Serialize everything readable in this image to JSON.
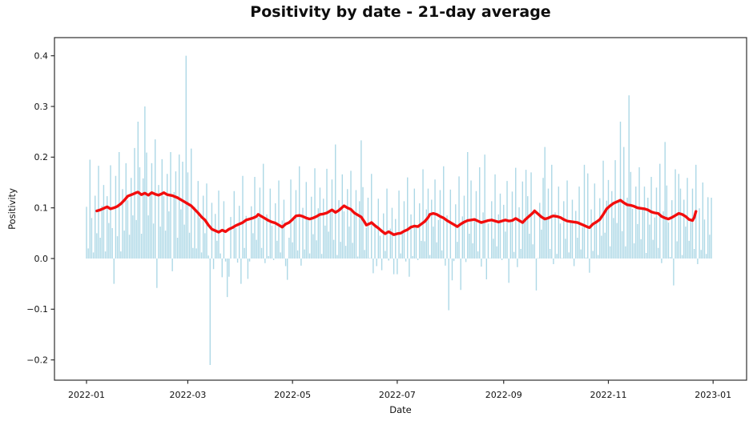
{
  "figure": {
    "title": "Positivity by date - 21-day average"
  },
  "chart_data": {
    "type": "bar",
    "title": "Positivity by date - 21-day average",
    "xlabel": "Date",
    "ylabel": "Positivity",
    "x_start_date": "2022-01-01",
    "x_unit": "days since 2022-01-01",
    "n_days": 365,
    "ylim": [
      -0.24,
      0.436
    ],
    "grid": false,
    "legend": "none",
    "colors": {
      "bar": "#ADD8E6",
      "line": "#F20D0D",
      "spine": "#2e2e2e",
      "text": "#111111"
    },
    "x_ticks": [
      {
        "day": 0,
        "label": "2022-01"
      },
      {
        "day": 59,
        "label": "2022-03"
      },
      {
        "day": 120,
        "label": "2022-05"
      },
      {
        "day": 181,
        "label": "2022-07"
      },
      {
        "day": 243,
        "label": "2022-09"
      },
      {
        "day": 304,
        "label": "2022-11"
      },
      {
        "day": 365,
        "label": "2023-01"
      }
    ],
    "y_ticks": [
      {
        "value": 0.4,
        "label": "0.4"
      },
      {
        "value": 0.3,
        "label": "0.3"
      },
      {
        "value": 0.2,
        "label": "0.2"
      },
      {
        "value": 0.1,
        "label": "0.1"
      },
      {
        "value": 0.0,
        "label": "0.0"
      },
      {
        "value": -0.1,
        "label": "−0.1"
      },
      {
        "value": -0.2,
        "label": "−0.2"
      }
    ],
    "series": [
      {
        "name": "daily positivity",
        "type": "bar",
        "color": "#ADD8E6",
        "start_day": 0,
        "values": [
          0.102,
          0.02,
          0.195,
          0.08,
          0.012,
          0.124,
          0.05,
          0.183,
          0.041,
          0.104,
          0.145,
          0.014,
          0.123,
          0.07,
          0.184,
          0.06,
          -0.05,
          0.163,
          0.044,
          0.21,
          0.014,
          0.137,
          0.055,
          0.188,
          0.115,
          0.047,
          0.159,
          0.085,
          0.218,
          0.076,
          0.27,
          0.18,
          0.049,
          0.158,
          0.3,
          0.209,
          0.085,
          0.129,
          0.188,
          0.069,
          0.235,
          -0.058,
          0.145,
          0.063,
          0.196,
          0.123,
          0.055,
          0.167,
          0.093,
          0.21,
          -0.025,
          0.131,
          0.172,
          0.041,
          0.205,
          0.097,
          0.191,
          0.067,
          0.4,
          0.17,
          0.051,
          0.217,
          0.021,
          0.102,
          0.02,
          0.153,
          0.08,
          0.012,
          0.124,
          0.05,
          0.148,
          0.006,
          -0.21,
          0.11,
          -0.021,
          0.088,
          0.035,
          0.134,
          0.01,
          -0.037,
          0.113,
          -0.006,
          -0.076,
          -0.036,
          0.082,
          0.0,
          0.133,
          0.06,
          -0.008,
          0.104,
          -0.05,
          0.163,
          0.021,
          0.084,
          -0.04,
          -0.006,
          0.103,
          0.05,
          0.161,
          0.037,
          0.081,
          0.14,
          0.021,
          0.187,
          -0.009,
          0.087,
          0.005,
          0.138,
          0.065,
          -0.003,
          0.109,
          0.035,
          0.154,
          0.012,
          0.075,
          0.116,
          -0.015,
          -0.042,
          0.041,
          0.156,
          0.032,
          0.076,
          0.135,
          0.016,
          0.182,
          -0.014,
          0.1,
          0.018,
          0.151,
          0.078,
          0.01,
          0.122,
          0.048,
          0.178,
          0.036,
          0.099,
          0.14,
          0.009,
          0.118,
          0.065,
          0.177,
          0.053,
          0.097,
          0.156,
          0.037,
          0.225,
          0.007,
          0.115,
          0.033,
          0.166,
          0.093,
          0.025,
          0.137,
          0.063,
          0.173,
          0.031,
          0.094,
          0.135,
          0.004,
          0.113,
          0.233,
          0.141,
          0.017,
          0.061,
          0.12,
          0.001,
          0.167,
          -0.029,
          0.067,
          -0.015,
          0.118,
          0.045,
          -0.023,
          0.089,
          0.015,
          0.138,
          -0.004,
          0.059,
          0.1,
          -0.031,
          0.078,
          -0.031,
          0.134,
          0.01,
          0.054,
          0.113,
          -0.006,
          0.16,
          -0.036,
          0.087,
          0.005,
          0.138,
          0.065,
          -0.003,
          0.109,
          0.035,
          0.176,
          0.034,
          0.097,
          0.138,
          0.007,
          0.116,
          0.063,
          0.156,
          0.032,
          0.076,
          0.135,
          0.016,
          0.182,
          -0.014,
          0.085,
          -0.102,
          0.136,
          -0.043,
          -0.005,
          0.107,
          0.033,
          0.162,
          -0.062,
          0.083,
          0.124,
          -0.007,
          0.21,
          0.049,
          0.154,
          0.03,
          0.074,
          0.133,
          0.014,
          0.18,
          -0.016,
          0.091,
          0.205,
          -0.041,
          0.069,
          0.001,
          0.113,
          0.039,
          0.166,
          0.024,
          0.087,
          0.128,
          -0.003,
          0.106,
          0.053,
          0.153,
          -0.048,
          0.073,
          0.132,
          0.013,
          0.179,
          -0.017,
          0.101,
          0.019,
          0.152,
          0.079,
          0.175,
          0.123,
          0.049,
          0.17,
          0.028,
          0.091,
          -0.063,
          0.001,
          0.11,
          0.057,
          0.159,
          0.22,
          0.079,
          0.138,
          0.019,
          0.185,
          -0.011,
          0.091,
          0.009,
          0.142,
          0.069,
          0.001,
          0.113,
          0.039,
          0.154,
          0.012,
          0.075,
          0.116,
          -0.015,
          0.094,
          0.041,
          0.142,
          0.018,
          0.062,
          0.185,
          0.002,
          0.168,
          -0.028,
          0.097,
          0.015,
          0.148,
          0.075,
          0.007,
          0.119,
          0.045,
          0.193,
          0.051,
          0.114,
          0.155,
          0.024,
          0.133,
          0.08,
          0.194,
          0.07,
          0.114,
          0.27,
          0.054,
          0.22,
          0.024,
          0.12,
          0.322,
          0.171,
          0.098,
          0.03,
          0.142,
          0.068,
          0.18,
          0.038,
          0.101,
          0.142,
          0.011,
          0.12,
          0.067,
          0.161,
          0.037,
          0.081,
          0.14,
          0.021,
          0.187,
          -0.009,
          0.093,
          0.23,
          0.144,
          0.071,
          0.003,
          0.115,
          -0.053,
          0.176,
          0.034,
          0.167,
          0.138,
          0.007,
          0.116,
          0.063,
          0.159,
          0.035,
          0.079,
          0.138,
          0.019,
          0.185,
          -0.011,
          0.099,
          0.017,
          0.15,
          0.077,
          0.009,
          0.121,
          0.047,
          0.12
        ]
      },
      {
        "name": "21-day average",
        "type": "line",
        "color": "#F20D0D",
        "points": [
          [
            6,
            0.094
          ],
          [
            8,
            0.096
          ],
          [
            10,
            0.099
          ],
          [
            12,
            0.102
          ],
          [
            14,
            0.098
          ],
          [
            16,
            0.1
          ],
          [
            18,
            0.103
          ],
          [
            20,
            0.108
          ],
          [
            22,
            0.115
          ],
          [
            24,
            0.123
          ],
          [
            27,
            0.127
          ],
          [
            29,
            0.13
          ],
          [
            30,
            0.131
          ],
          [
            32,
            0.126
          ],
          [
            34,
            0.129
          ],
          [
            36,
            0.125
          ],
          [
            38,
            0.13
          ],
          [
            40,
            0.127
          ],
          [
            42,
            0.125
          ],
          [
            44,
            0.128
          ],
          [
            45,
            0.13
          ],
          [
            47,
            0.126
          ],
          [
            50,
            0.124
          ],
          [
            53,
            0.12
          ],
          [
            55,
            0.116
          ],
          [
            57,
            0.112
          ],
          [
            59,
            0.108
          ],
          [
            61,
            0.104
          ],
          [
            63,
            0.097
          ],
          [
            65,
            0.09
          ],
          [
            67,
            0.082
          ],
          [
            69,
            0.076
          ],
          [
            71,
            0.066
          ],
          [
            73,
            0.058
          ],
          [
            75,
            0.055
          ],
          [
            77,
            0.052
          ],
          [
            79,
            0.056
          ],
          [
            81,
            0.053
          ],
          [
            83,
            0.058
          ],
          [
            85,
            0.061
          ],
          [
            87,
            0.065
          ],
          [
            89,
            0.068
          ],
          [
            91,
            0.071
          ],
          [
            93,
            0.076
          ],
          [
            95,
            0.078
          ],
          [
            97,
            0.08
          ],
          [
            99,
            0.083
          ],
          [
            100,
            0.087
          ],
          [
            102,
            0.083
          ],
          [
            104,
            0.079
          ],
          [
            106,
            0.075
          ],
          [
            108,
            0.072
          ],
          [
            110,
            0.07
          ],
          [
            112,
            0.066
          ],
          [
            114,
            0.062
          ],
          [
            116,
            0.068
          ],
          [
            118,
            0.071
          ],
          [
            120,
            0.077
          ],
          [
            122,
            0.084
          ],
          [
            124,
            0.085
          ],
          [
            126,
            0.083
          ],
          [
            128,
            0.08
          ],
          [
            130,
            0.078
          ],
          [
            132,
            0.08
          ],
          [
            134,
            0.083
          ],
          [
            136,
            0.087
          ],
          [
            138,
            0.088
          ],
          [
            140,
            0.09
          ],
          [
            142,
            0.094
          ],
          [
            143,
            0.096
          ],
          [
            145,
            0.091
          ],
          [
            147,
            0.095
          ],
          [
            149,
            0.101
          ],
          [
            150,
            0.104
          ],
          [
            152,
            0.1
          ],
          [
            154,
            0.097
          ],
          [
            156,
            0.09
          ],
          [
            158,
            0.086
          ],
          [
            160,
            0.082
          ],
          [
            162,
            0.072
          ],
          [
            163,
            0.066
          ],
          [
            165,
            0.069
          ],
          [
            166,
            0.071
          ],
          [
            168,
            0.065
          ],
          [
            170,
            0.06
          ],
          [
            172,
            0.054
          ],
          [
            174,
            0.049
          ],
          [
            176,
            0.053
          ],
          [
            178,
            0.049
          ],
          [
            179,
            0.047
          ],
          [
            181,
            0.049
          ],
          [
            183,
            0.05
          ],
          [
            185,
            0.054
          ],
          [
            187,
            0.057
          ],
          [
            189,
            0.062
          ],
          [
            191,
            0.064
          ],
          [
            193,
            0.063
          ],
          [
            195,
            0.068
          ],
          [
            197,
            0.073
          ],
          [
            199,
            0.081
          ],
          [
            200,
            0.087
          ],
          [
            202,
            0.089
          ],
          [
            204,
            0.087
          ],
          [
            206,
            0.083
          ],
          [
            208,
            0.08
          ],
          [
            210,
            0.075
          ],
          [
            212,
            0.071
          ],
          [
            214,
            0.067
          ],
          [
            216,
            0.063
          ],
          [
            218,
            0.068
          ],
          [
            220,
            0.072
          ],
          [
            222,
            0.075
          ],
          [
            224,
            0.076
          ],
          [
            226,
            0.077
          ],
          [
            228,
            0.074
          ],
          [
            230,
            0.071
          ],
          [
            232,
            0.073
          ],
          [
            234,
            0.075
          ],
          [
            236,
            0.076
          ],
          [
            238,
            0.074
          ],
          [
            240,
            0.072
          ],
          [
            242,
            0.074
          ],
          [
            244,
            0.076
          ],
          [
            246,
            0.074
          ],
          [
            248,
            0.075
          ],
          [
            250,
            0.079
          ],
          [
            252,
            0.075
          ],
          [
            254,
            0.071
          ],
          [
            256,
            0.078
          ],
          [
            258,
            0.084
          ],
          [
            260,
            0.09
          ],
          [
            261,
            0.094
          ],
          [
            263,
            0.088
          ],
          [
            265,
            0.082
          ],
          [
            267,
            0.078
          ],
          [
            269,
            0.08
          ],
          [
            271,
            0.083
          ],
          [
            272,
            0.084
          ],
          [
            274,
            0.083
          ],
          [
            276,
            0.081
          ],
          [
            278,
            0.077
          ],
          [
            280,
            0.074
          ],
          [
            282,
            0.073
          ],
          [
            284,
            0.072
          ],
          [
            286,
            0.071
          ],
          [
            288,
            0.068
          ],
          [
            290,
            0.065
          ],
          [
            292,
            0.062
          ],
          [
            293,
            0.061
          ],
          [
            295,
            0.068
          ],
          [
            297,
            0.072
          ],
          [
            299,
            0.077
          ],
          [
            301,
            0.087
          ],
          [
            303,
            0.098
          ],
          [
            305,
            0.104
          ],
          [
            307,
            0.109
          ],
          [
            309,
            0.112
          ],
          [
            311,
            0.115
          ],
          [
            313,
            0.11
          ],
          [
            315,
            0.106
          ],
          [
            317,
            0.105
          ],
          [
            319,
            0.103
          ],
          [
            321,
            0.1
          ],
          [
            323,
            0.099
          ],
          [
            325,
            0.098
          ],
          [
            327,
            0.096
          ],
          [
            329,
            0.092
          ],
          [
            331,
            0.09
          ],
          [
            333,
            0.089
          ],
          [
            335,
            0.083
          ],
          [
            337,
            0.08
          ],
          [
            339,
            0.078
          ],
          [
            341,
            0.081
          ],
          [
            343,
            0.085
          ],
          [
            345,
            0.089
          ],
          [
            347,
            0.087
          ],
          [
            349,
            0.083
          ],
          [
            351,
            0.077
          ],
          [
            353,
            0.075
          ],
          [
            354,
            0.081
          ],
          [
            355,
            0.093
          ]
        ]
      }
    ]
  }
}
